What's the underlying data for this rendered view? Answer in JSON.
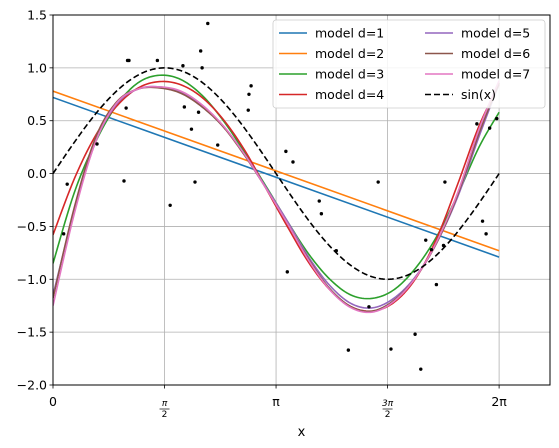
{
  "chart_data": {
    "type": "line",
    "xlabel": "x",
    "xlim": [
      0,
      7.0
    ],
    "ylim": [
      -2.0,
      1.5
    ],
    "grid": true,
    "legend_placement": "top-right",
    "x_ticks": [
      {
        "value": 0,
        "label": "0"
      },
      {
        "value": 1.5708,
        "label": "π/2",
        "num": "π",
        "den": "2"
      },
      {
        "value": 3.1416,
        "label": "π"
      },
      {
        "value": 4.7124,
        "label": "3π/2",
        "num": "3π",
        "den": "2"
      },
      {
        "value": 6.2832,
        "label": "2π"
      }
    ],
    "y_ticks": [
      {
        "value": 1.5,
        "label": "1.5"
      },
      {
        "value": 1.0,
        "label": "1.0"
      },
      {
        "value": 0.5,
        "label": "0.5"
      },
      {
        "value": 0.0,
        "label": "0.0"
      },
      {
        "value": -0.5,
        "label": "−0.5"
      },
      {
        "value": -1.0,
        "label": "−1.0"
      },
      {
        "value": -1.5,
        "label": "−1.5"
      },
      {
        "value": -2.0,
        "label": "−2.0"
      }
    ],
    "series": [
      {
        "name": "model d=1",
        "color": "#1f77b4",
        "style": "solid",
        "x": [
          0,
          6.2832
        ],
        "y": [
          0.72,
          -0.79
        ]
      },
      {
        "name": "model d=2",
        "color": "#ff7f0e",
        "style": "solid",
        "x": [
          0,
          6.2832
        ],
        "y": [
          0.78,
          -0.73
        ]
      },
      {
        "name": "model d=3",
        "color": "#2ca02c",
        "style": "solid",
        "x": [
          0,
          0.3,
          0.6,
          0.9,
          1.2,
          1.5,
          1.8,
          2.1,
          2.4,
          2.7,
          3.0,
          3.3,
          3.6,
          3.9,
          4.2,
          4.5,
          4.8,
          5.1,
          5.4,
          5.7,
          6.0,
          6.2832
        ],
        "y": [
          -0.85,
          -0.18,
          0.3,
          0.65,
          0.86,
          0.93,
          0.89,
          0.74,
          0.5,
          0.2,
          -0.12,
          -0.45,
          -0.76,
          -1.0,
          -1.15,
          -1.18,
          -1.1,
          -0.9,
          -0.6,
          -0.2,
          0.25,
          0.58
        ]
      },
      {
        "name": "model d=4",
        "color": "#d62728",
        "style": "solid",
        "x": [
          0,
          0.3,
          0.6,
          0.9,
          1.2,
          1.5,
          1.8,
          2.1,
          2.4,
          2.7,
          3.0,
          3.3,
          3.6,
          3.9,
          4.2,
          4.5,
          4.8,
          5.1,
          5.4,
          5.7,
          6.0,
          6.2832
        ],
        "y": [
          -0.58,
          -0.05,
          0.36,
          0.64,
          0.81,
          0.87,
          0.84,
          0.72,
          0.51,
          0.22,
          -0.14,
          -0.5,
          -0.84,
          -1.1,
          -1.26,
          -1.3,
          -1.22,
          -1.0,
          -0.62,
          -0.1,
          0.45,
          0.84
        ]
      },
      {
        "name": "model d=5",
        "color": "#9467bd",
        "style": "solid",
        "x": [
          0,
          0.3,
          0.6,
          0.9,
          1.2,
          1.5,
          1.8,
          2.1,
          2.4,
          2.7,
          3.0,
          3.3,
          3.6,
          3.9,
          4.2,
          4.5,
          4.8,
          5.1,
          5.4,
          5.7,
          6.0,
          6.2832
        ],
        "y": [
          -1.15,
          -0.35,
          0.3,
          0.66,
          0.8,
          0.82,
          0.77,
          0.64,
          0.45,
          0.18,
          -0.13,
          -0.45,
          -0.79,
          -1.06,
          -1.23,
          -1.27,
          -1.18,
          -0.98,
          -0.66,
          -0.22,
          0.35,
          0.85
        ]
      },
      {
        "name": "model d=6",
        "color": "#8c564b",
        "style": "solid",
        "x": [
          0,
          0.3,
          0.6,
          0.9,
          1.2,
          1.5,
          1.8,
          2.1,
          2.4,
          2.7,
          3.0,
          3.3,
          3.6,
          3.9,
          4.2,
          4.5,
          4.8,
          5.1,
          5.4,
          5.7,
          6.0,
          6.2832
        ],
        "y": [
          -1.18,
          -0.32,
          0.34,
          0.68,
          0.8,
          0.81,
          0.76,
          0.63,
          0.44,
          0.17,
          -0.14,
          -0.47,
          -0.81,
          -1.09,
          -1.26,
          -1.3,
          -1.2,
          -0.99,
          -0.66,
          -0.2,
          0.38,
          0.86
        ]
      },
      {
        "name": "model d=7",
        "color": "#e377c2",
        "style": "solid",
        "x": [
          0,
          0.3,
          0.6,
          0.9,
          1.2,
          1.5,
          1.8,
          2.1,
          2.4,
          2.7,
          3.0,
          3.3,
          3.6,
          3.9,
          4.2,
          4.5,
          4.8,
          5.1,
          5.4,
          5.7,
          6.0,
          6.2832
        ],
        "y": [
          -1.25,
          -0.38,
          0.3,
          0.67,
          0.8,
          0.82,
          0.78,
          0.65,
          0.45,
          0.18,
          -0.14,
          -0.47,
          -0.82,
          -1.1,
          -1.27,
          -1.31,
          -1.21,
          -0.99,
          -0.65,
          -0.18,
          0.42,
          0.88
        ]
      },
      {
        "name": "sin(x)",
        "color": "#000000",
        "style": "dashed",
        "fn": "sin",
        "x": [
          0,
          6.2832
        ],
        "y": [
          0,
          0
        ]
      }
    ],
    "points": {
      "color": "#000000",
      "x": [
        0.15,
        0.2,
        0.62,
        1.0,
        1.03,
        1.05,
        1.07,
        1.47,
        1.65,
        1.83,
        1.85,
        1.95,
        2.0,
        2.05,
        2.08,
        2.1,
        2.18,
        2.32,
        2.75,
        2.76,
        2.79,
        3.28,
        3.3,
        3.38,
        3.75,
        3.78,
        3.99,
        4.16,
        4.45,
        4.58,
        4.76,
        5.1,
        5.18,
        5.25,
        5.33,
        5.4,
        5.5,
        5.52,
        5.97,
        6.05,
        6.1,
        6.15,
        6.25
      ],
      "y": [
        -0.57,
        -0.1,
        0.28,
        -0.07,
        0.62,
        1.07,
        1.07,
        1.07,
        -0.3,
        1.02,
        0.63,
        0.42,
        -0.08,
        0.58,
        1.16,
        1.0,
        1.42,
        0.27,
        0.6,
        0.75,
        0.83,
        0.21,
        -0.93,
        0.11,
        -0.26,
        -0.38,
        -0.73,
        -1.67,
        -1.26,
        -0.08,
        -1.66,
        -1.52,
        -1.85,
        -0.63,
        -0.72,
        -1.05,
        -0.68,
        -0.08,
        0.47,
        -0.45,
        -0.57,
        0.43,
        0.52
      ]
    }
  }
}
